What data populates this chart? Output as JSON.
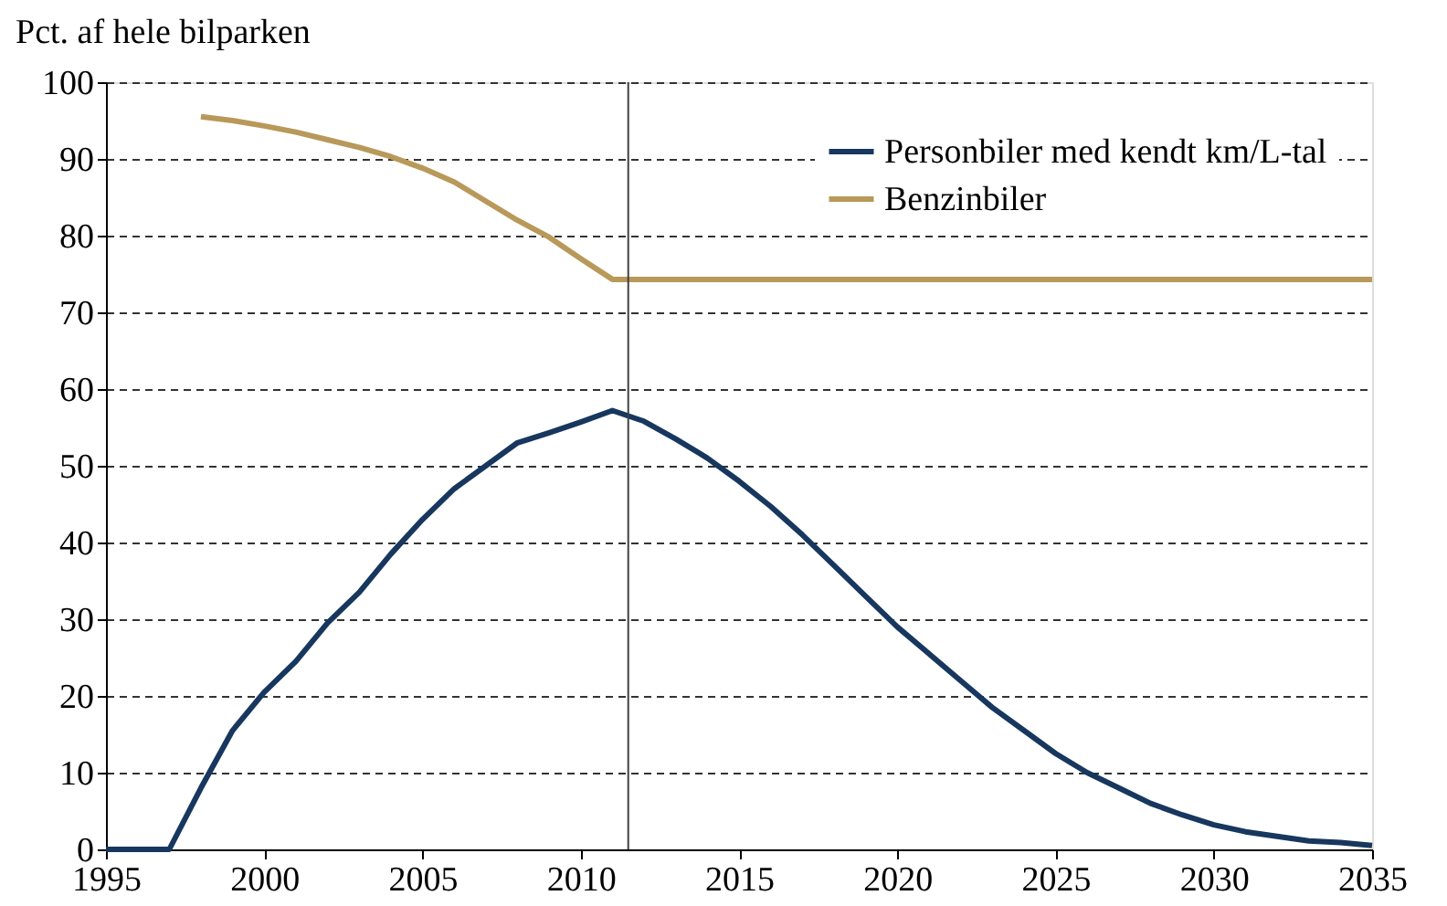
{
  "chart_data": {
    "type": "line",
    "ylabel": "Pct. af hele bilparken",
    "xlim": [
      1995,
      2035
    ],
    "xticks": [
      1995,
      2000,
      2005,
      2010,
      2015,
      2020,
      2025,
      2030,
      2035
    ],
    "ylim": [
      0,
      100
    ],
    "yticks": [
      0,
      10,
      20,
      30,
      40,
      50,
      60,
      70,
      80,
      90,
      100
    ],
    "grid": "y",
    "legend": "top right",
    "line_style": "solid",
    "marker": "none",
    "ref_lines": [
      {
        "axis": "x",
        "value": 2011.5,
        "color": "#404040"
      }
    ],
    "series": [
      {
        "name": "Personbiler med kendt km/L-tal",
        "color": "#17375e",
        "x": [
          1995,
          1996,
          1997,
          1998,
          1999,
          2000,
          2001,
          2002,
          2003,
          2004,
          2005,
          2006,
          2007,
          2008,
          2009,
          2010,
          2011,
          2012,
          2013,
          2014,
          2015,
          2016,
          2017,
          2018,
          2019,
          2020,
          2021,
          2022,
          2023,
          2024,
          2025,
          2026,
          2027,
          2028,
          2029,
          2030,
          2031,
          2032,
          2033,
          2034,
          2035
        ],
        "values": [
          0,
          0,
          0,
          8,
          15.5,
          20.5,
          24.5,
          29.5,
          33.5,
          38.5,
          43,
          47,
          50,
          53,
          54.3,
          55.7,
          57.2,
          55.8,
          53.5,
          51,
          48,
          44.7,
          41,
          37,
          33,
          29,
          25.5,
          22,
          18.5,
          15.5,
          12.5,
          10,
          8,
          6,
          4.5,
          3.2,
          2.3,
          1.7,
          1.1,
          0.9,
          0.5
        ]
      },
      {
        "name": "Benzinbiler",
        "color": "#b8995a",
        "x": [
          1998,
          1999,
          2000,
          2001,
          2002,
          2003,
          2004,
          2005,
          2006,
          2007,
          2008,
          2009,
          2010,
          2011,
          2012,
          2015,
          2020,
          2025,
          2030,
          2035
        ],
        "values": [
          95.5,
          95,
          94.3,
          93.5,
          92.5,
          91.5,
          90.3,
          88.8,
          87,
          84.5,
          82,
          79.8,
          77,
          74.3,
          74.3,
          74.3,
          74.3,
          74.3,
          74.3,
          74.3
        ]
      }
    ]
  }
}
